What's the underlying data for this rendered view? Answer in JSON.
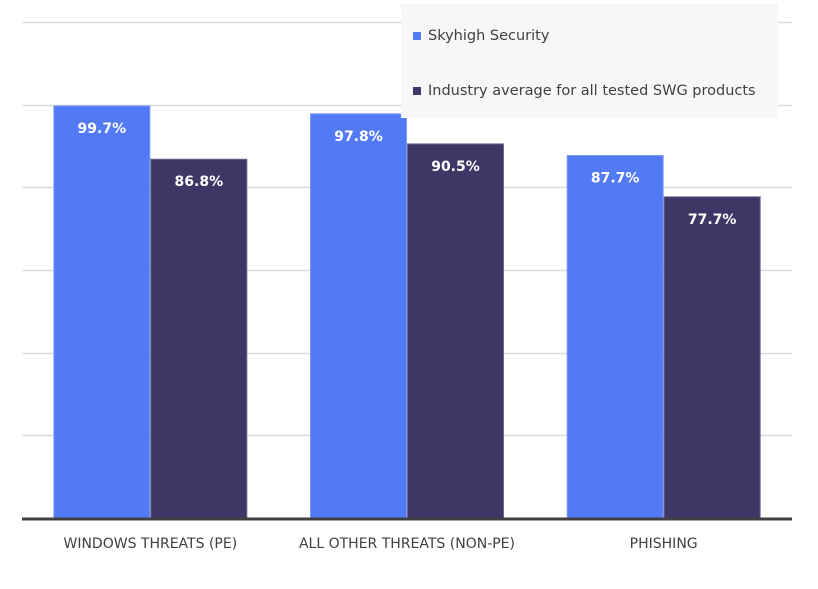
{
  "chart_data": {
    "type": "bar",
    "title": "",
    "xlabel": "",
    "ylabel": "",
    "ylim": [
      0,
      120
    ],
    "ytick_step": 20,
    "y_tick_labels_visible": false,
    "grid": true,
    "legend_position": "top-right",
    "categories": [
      "WINDOWS THREATS (PE)",
      "ALL OTHER THREATS (NON-PE)",
      "PHISHING"
    ],
    "series": [
      {
        "name": "Skyhigh Security",
        "color": "#527af5",
        "values": [
          99.7,
          97.8,
          87.7
        ],
        "labels": [
          "99.7%",
          "97.8%",
          "87.7%"
        ]
      },
      {
        "name": "Industry average for all tested SWG products",
        "color": "#3d3766",
        "values": [
          86.8,
          90.5,
          77.7
        ],
        "labels": [
          "86.8%",
          "90.5%",
          "77.7%"
        ]
      }
    ]
  },
  "legend": {
    "items": [
      {
        "label": "Skyhigh Security",
        "color": "#527af5"
      },
      {
        "label": "Industry average for all tested SWG products",
        "color": "#3d3766"
      }
    ]
  }
}
